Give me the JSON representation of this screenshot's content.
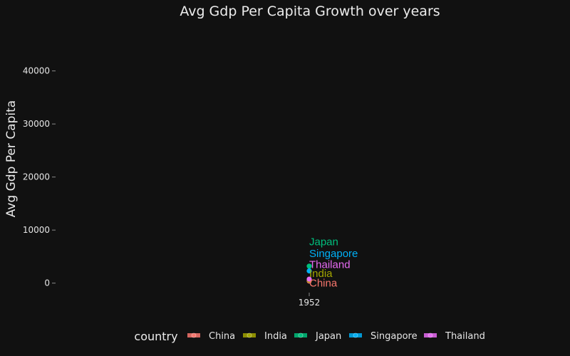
{
  "chart_data": {
    "type": "scatter",
    "title": "Avg Gdp Per Capita Growth over years",
    "xlabel": "",
    "ylabel": "Avg Gdp Per Capita",
    "x_ticks": [
      "1952"
    ],
    "y_ticks": [
      0,
      10000,
      20000,
      30000,
      40000
    ],
    "ylim": [
      -3000,
      48000
    ],
    "grid": false,
    "legend_title": "country",
    "legend_position": "bottom",
    "series": [
      {
        "name": "China",
        "x": 1952,
        "y": 400,
        "color": "#F8766D"
      },
      {
        "name": "India",
        "x": 1952,
        "y": 550,
        "color": "#A3A500"
      },
      {
        "name": "Japan",
        "x": 1952,
        "y": 3200,
        "color": "#00BF7D"
      },
      {
        "name": "Singapore",
        "x": 1952,
        "y": 2300,
        "color": "#00B0F6"
      },
      {
        "name": "Thailand",
        "x": 1952,
        "y": 750,
        "color": "#E76BF3"
      }
    ],
    "annotations": [
      {
        "text": "Japan",
        "series": "Japan",
        "y_label": 7800
      },
      {
        "text": "Singapore",
        "series": "Singapore",
        "y_label": 5600
      },
      {
        "text": "Thailand",
        "series": "Thailand",
        "y_label": 3500
      },
      {
        "text": "India",
        "series": "India",
        "y_label": 1800
      },
      {
        "text": "China",
        "series": "China",
        "y_label": 0
      }
    ]
  }
}
